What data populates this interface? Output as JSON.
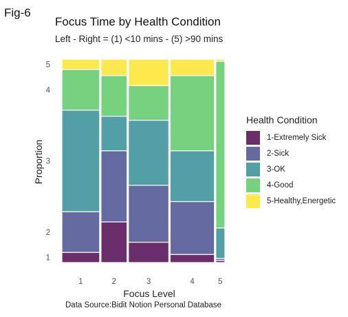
{
  "figure_label": "Fig-6",
  "chart_data": {
    "type": "mosaic",
    "title": "Focus Time by Health Condition",
    "subtitle": "Left - Right = (1) <10 mins - (5) >90 mins",
    "xlabel": "Focus Level",
    "ylabel": "Proportion",
    "caption": "Data Source:Bidit Notion Personal Database",
    "legend_title": "Health Condition",
    "legend_position": "right",
    "grid": false,
    "categories": [
      "1",
      "2",
      "3",
      "4",
      "5"
    ],
    "column_widths": [
      0.29,
      0.2,
      0.31,
      0.34,
      0.07
    ],
    "series": [
      {
        "name": "1-Extremely Sick",
        "color": "#6a2f6b",
        "values": [
          0.05,
          0.2,
          0.1,
          0.04,
          0.01
        ]
      },
      {
        "name": "2-Sick",
        "color": "#646a9f",
        "values": [
          0.2,
          0.35,
          0.28,
          0.26,
          0.01
        ]
      },
      {
        "name": "3-OK",
        "color": "#52a0a6",
        "values": [
          0.5,
          0.17,
          0.32,
          0.25,
          0.15
        ]
      },
      {
        "name": "4-Good",
        "color": "#77d27f",
        "values": [
          0.2,
          0.2,
          0.17,
          0.37,
          0.82
        ]
      },
      {
        "name": "5-Healthy,Energetic",
        "color": "#fde84e",
        "values": [
          0.05,
          0.08,
          0.13,
          0.08,
          0.01
        ]
      }
    ],
    "y_tick_labels": [
      "1",
      "2",
      "3",
      "4",
      "5"
    ]
  }
}
